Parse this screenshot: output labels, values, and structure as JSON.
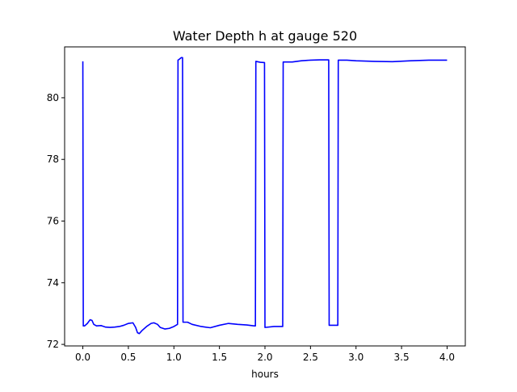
{
  "chart_data": {
    "type": "line",
    "title": "Water Depth h at gauge 520",
    "xlabel": "hours",
    "ylabel": "",
    "xlim": [
      -0.2,
      4.2
    ],
    "ylim": [
      71.95,
      81.65
    ],
    "xticks": [
      0.0,
      0.5,
      1.0,
      1.5,
      2.0,
      2.5,
      3.0,
      3.5,
      4.0
    ],
    "xtick_labels": [
      "0.0",
      "0.5",
      "1.0",
      "1.5",
      "2.0",
      "2.5",
      "3.0",
      "3.5",
      "4.0"
    ],
    "yticks": [
      72,
      74,
      76,
      78,
      80
    ],
    "ytick_labels": [
      "72",
      "74",
      "76",
      "78",
      "80"
    ],
    "grid": false,
    "series": [
      {
        "color": "#0000ff",
        "x": [
          0.0,
          0.005,
          0.02,
          0.05,
          0.08,
          0.1,
          0.12,
          0.15,
          0.2,
          0.25,
          0.3,
          0.35,
          0.4,
          0.45,
          0.5,
          0.55,
          0.58,
          0.6,
          0.62,
          0.65,
          0.7,
          0.75,
          0.78,
          0.82,
          0.85,
          0.9,
          0.95,
          1.0,
          1.04,
          1.045,
          1.06,
          1.08,
          1.095,
          1.1,
          1.15,
          1.2,
          1.3,
          1.4,
          1.5,
          1.6,
          1.7,
          1.8,
          1.88,
          1.895,
          1.9,
          1.95,
          1.995,
          2.0,
          2.1,
          2.19,
          2.195,
          2.2,
          2.3,
          2.4,
          2.5,
          2.6,
          2.7,
          2.705,
          2.8,
          2.805,
          2.9,
          3.0,
          3.2,
          3.4,
          3.6,
          3.8,
          4.0
        ],
        "y": [
          81.18,
          72.6,
          72.6,
          72.68,
          72.8,
          72.78,
          72.65,
          72.6,
          72.61,
          72.56,
          72.55,
          72.56,
          72.58,
          72.62,
          72.68,
          72.7,
          72.55,
          72.38,
          72.35,
          72.45,
          72.58,
          72.68,
          72.7,
          72.65,
          72.55,
          72.5,
          72.52,
          72.58,
          72.65,
          81.22,
          81.25,
          81.3,
          81.3,
          72.72,
          72.72,
          72.65,
          72.58,
          72.54,
          72.62,
          72.68,
          72.65,
          72.63,
          72.6,
          72.6,
          81.18,
          81.15,
          81.14,
          72.55,
          72.58,
          72.58,
          72.58,
          81.16,
          81.16,
          81.2,
          81.22,
          81.23,
          81.23,
          72.62,
          72.62,
          81.22,
          81.22,
          81.2,
          81.18,
          81.17,
          81.2,
          81.22,
          81.22
        ]
      }
    ]
  }
}
